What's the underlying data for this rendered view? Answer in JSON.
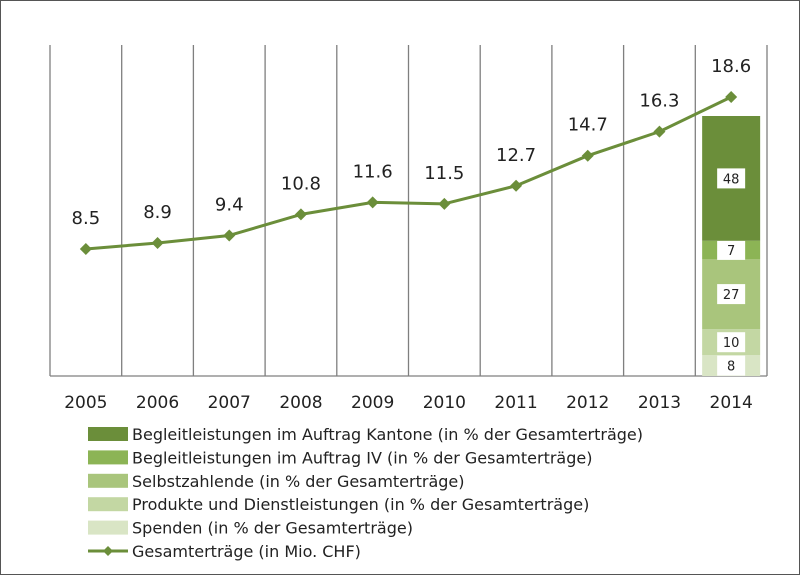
{
  "chart_data": {
    "type": "line",
    "categories": [
      "2005",
      "2006",
      "2007",
      "2008",
      "2009",
      "2010",
      "2011",
      "2012",
      "2013",
      "2014"
    ],
    "series": [
      {
        "name": "Gesamterträge (in Mio. CHF)",
        "values": [
          8.5,
          8.9,
          9.4,
          10.8,
          11.6,
          11.5,
          12.7,
          14.7,
          16.3,
          18.6
        ],
        "labels": [
          "8.5",
          "8.9",
          "9.4",
          "10.8",
          "11.6",
          "11.5",
          "12.7",
          "14.7",
          "16.3",
          "18.6"
        ],
        "color": "#6b8e3a"
      }
    ],
    "stacked_bar": {
      "category": "2014",
      "segments": [
        {
          "name": "Spenden (in % der Gesamterträge)",
          "value": 8,
          "color": "#d9e5c5"
        },
        {
          "name": "Produkte und Dienstleistungen (in % der Gesamterträge)",
          "value": 10,
          "color": "#c3d7a3"
        },
        {
          "name": "Selbstzahlende  (in % der Gesamterträge)",
          "value": 27,
          "color": "#a9c57c"
        },
        {
          "name": "Begleitleistungen im Auftrag IV (in % der Gesamterträge)",
          "value": 7,
          "color": "#8cb455"
        },
        {
          "name": "Begleitleistungen im Auftrag Kantone (in % der Gesamterträge)",
          "value": 48,
          "color": "#6b8e3a"
        }
      ]
    },
    "legend": {
      "position": "bottom",
      "items": [
        "Begleitleistungen im Auftrag Kantone (in % der Gesamterträge)",
        "Begleitleistungen im Auftrag IV (in % der Gesamterträge)",
        "Selbstzahlende  (in % der Gesamterträge)",
        "Produkte und Dienstleistungen (in % der Gesamterträge)",
        "Spenden (in % der Gesamterträge)",
        "Gesamterträge (in Mio. CHF)"
      ]
    },
    "grid": true,
    "title": "",
    "xlabel": "",
    "ylabel": ""
  }
}
